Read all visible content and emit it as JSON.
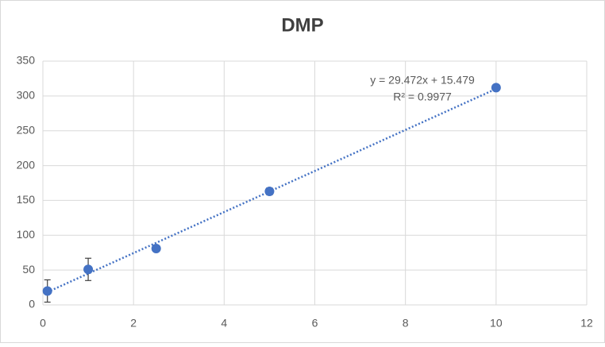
{
  "chart_data": {
    "type": "scatter",
    "title": "DMP",
    "series": [
      {
        "color": "#4472c4",
        "x": [
          0.1,
          1,
          2.5,
          5,
          10
        ],
        "values": [
          20,
          51,
          81,
          163,
          312
        ],
        "errors": [
          16,
          16,
          2,
          5,
          2
        ]
      }
    ],
    "trendline": {
      "label": "y = 29.472x + 15.479",
      "r2_label": "R² = 0.9977",
      "slope": 29.472,
      "intercept": 15.479,
      "color": "#4472c4"
    },
    "xlim": [
      0,
      12
    ],
    "xticks": [
      0,
      2,
      4,
      6,
      8,
      10,
      12
    ],
    "ylim": [
      0,
      350
    ],
    "yticks": [
      0,
      50,
      100,
      150,
      200,
      250,
      300,
      350
    ],
    "grid": true
  }
}
